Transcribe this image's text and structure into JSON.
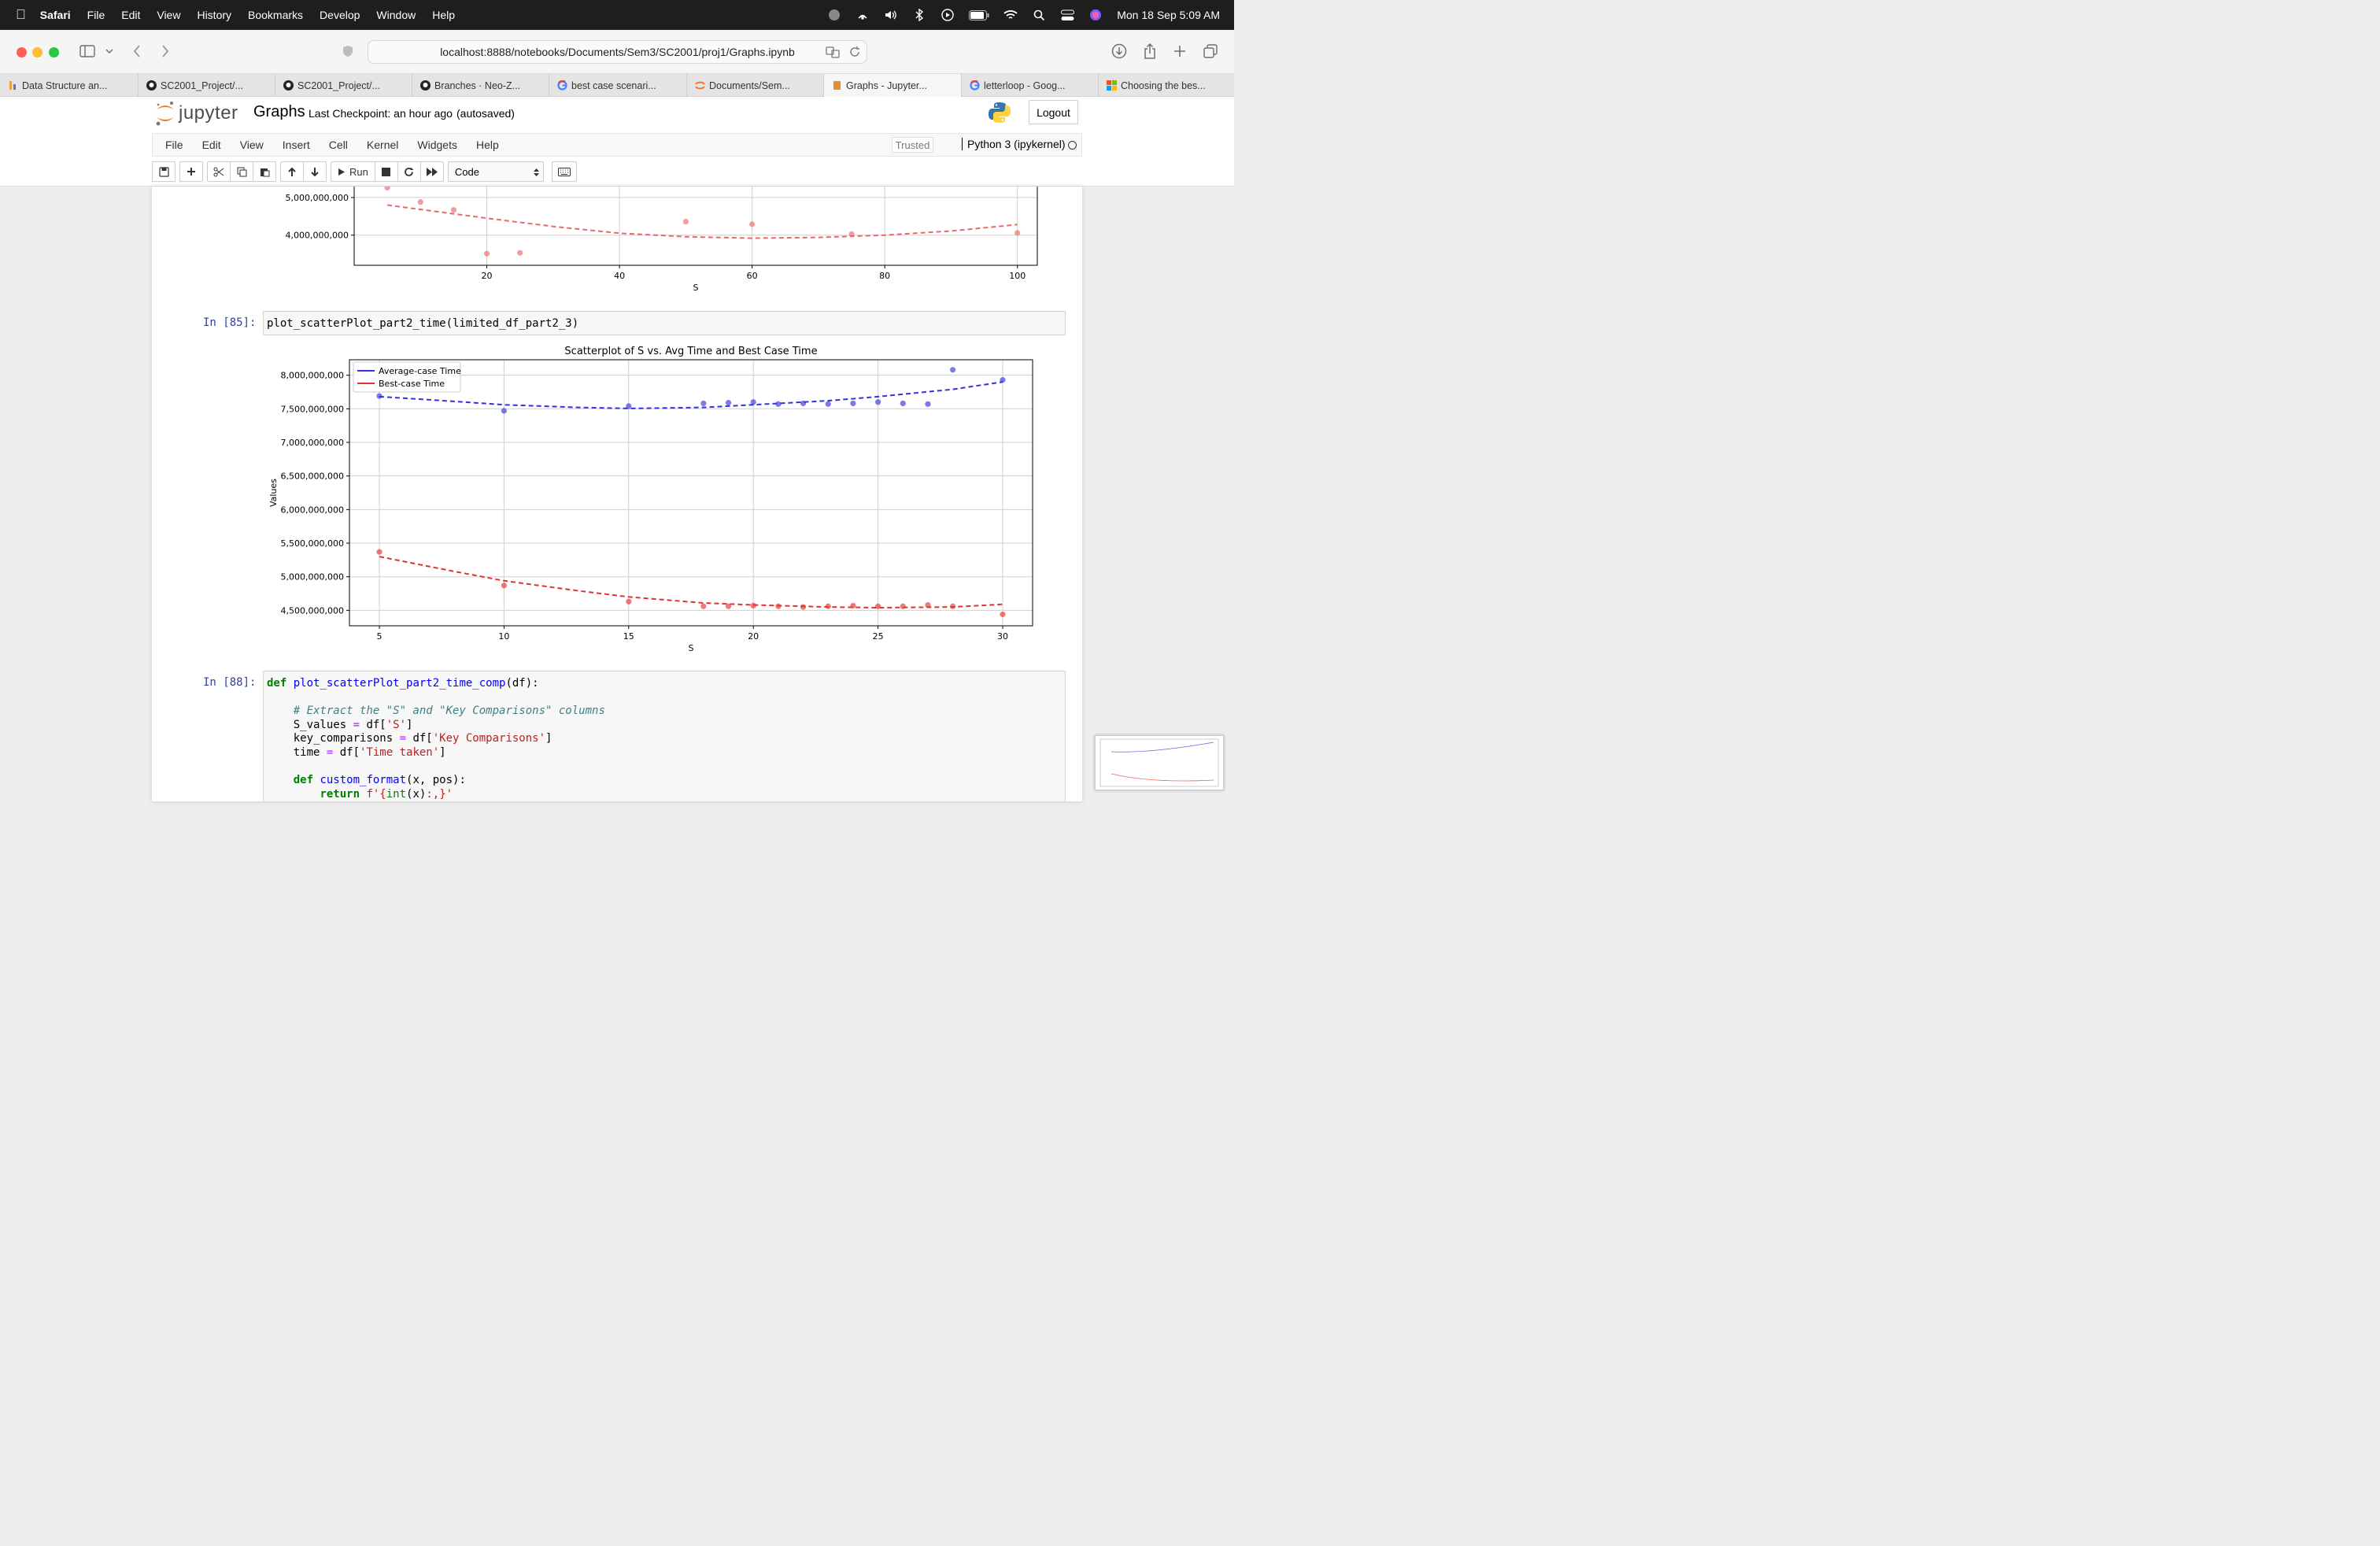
{
  "menubar": {
    "app": "Safari",
    "items": [
      "File",
      "Edit",
      "View",
      "History",
      "Bookmarks",
      "Develop",
      "Window",
      "Help"
    ],
    "clock": "Mon 18 Sep  5:09 AM"
  },
  "browser": {
    "url": "localhost:8888/notebooks/Documents/Sem3/SC2001/proj1/Graphs.ipynb",
    "tabs": [
      {
        "label": "Data Structure an...",
        "icon": "bar-icon"
      },
      {
        "label": "SC2001_Project/...",
        "icon": "github-icon"
      },
      {
        "label": "SC2001_Project/...",
        "icon": "github-icon"
      },
      {
        "label": "Branches · Neo-Z...",
        "icon": "github-icon"
      },
      {
        "label": "best case scenari...",
        "icon": "google-icon"
      },
      {
        "label": "Documents/Sem...",
        "icon": "jupyter-icon"
      },
      {
        "label": "Graphs - Jupyter...",
        "icon": "notebook-icon"
      },
      {
        "label": "letterloop - Goog...",
        "icon": "google-icon"
      },
      {
        "label": "Choosing the bes...",
        "icon": "microsoft-icon"
      }
    ]
  },
  "jupyter": {
    "logo_text": "jupyter",
    "notebook_name": "Graphs",
    "checkpoint": "Last Checkpoint: an hour ago",
    "autosave": "(autosaved)",
    "logout": "Logout",
    "menu": [
      "File",
      "Edit",
      "View",
      "Insert",
      "Cell",
      "Kernel",
      "Widgets",
      "Help"
    ],
    "trusted": "Trusted",
    "kernel": "Python 3 (ipykernel)",
    "run_label": "Run",
    "cell_type": "Code"
  },
  "cells": {
    "prompt_85": "In [85]:",
    "code_85": "plot_scatterPlot_part2_time(limited_df_part2_3)",
    "prompt_88": "In [88]:"
  },
  "chart_data": [
    {
      "type": "scatter",
      "title": "",
      "xlabel": "S",
      "ylabel": "",
      "xlim": [
        0,
        103
      ],
      "ylim": [
        3200000000,
        5500000000
      ],
      "xticks": [
        "20",
        "40",
        "60",
        "80",
        "100"
      ],
      "yticks": [
        "4,000,000,000",
        "5,000,000,000"
      ],
      "grid": true,
      "series": [
        {
          "color": "#e8696b",
          "points": [
            [
              5,
              5260000000
            ],
            [
              10,
              4880000000
            ],
            [
              15,
              4670000000
            ],
            [
              20,
              3510000000
            ],
            [
              25,
              3530000000
            ],
            [
              50,
              4360000000
            ],
            [
              60,
              4290000000
            ],
            [
              75,
              4030000000
            ],
            [
              100,
              4060000000
            ]
          ],
          "trend": [
            [
              5,
              4800000000
            ],
            [
              20,
              4450000000
            ],
            [
              30,
              4230000000
            ],
            [
              40,
              4050000000
            ],
            [
              50,
              3960000000
            ],
            [
              60,
              3920000000
            ],
            [
              70,
              3940000000
            ],
            [
              80,
              4000000000
            ],
            [
              90,
              4110000000
            ],
            [
              100,
              4280000000
            ]
          ]
        }
      ]
    },
    {
      "type": "scatter",
      "title": "Scatterplot of S vs. Avg Time and Best Case Time",
      "xlabel": "S",
      "ylabel": "Values",
      "xlim": [
        3.8,
        31.2
      ],
      "ylim": [
        4270000000,
        8230000000
      ],
      "xticks": [
        "5",
        "10",
        "15",
        "20",
        "25",
        "30"
      ],
      "yticks": [
        "4,500,000,000",
        "5,000,000,000",
        "5,500,000,000",
        "6,000,000,000",
        "6,500,000,000",
        "7,000,000,000",
        "7,500,000,000",
        "8,000,000,000"
      ],
      "grid": true,
      "legend_position": "top-left",
      "series": [
        {
          "name": "Average-case Time",
          "color": "#3333dd",
          "points": [
            [
              5,
              7690000000
            ],
            [
              10,
              7470000000
            ],
            [
              15,
              7540000000
            ],
            [
              18,
              7580000000
            ],
            [
              19,
              7590000000
            ],
            [
              20,
              7600000000
            ],
            [
              21,
              7570000000
            ],
            [
              22,
              7580000000
            ],
            [
              23,
              7570000000
            ],
            [
              24,
              7580000000
            ],
            [
              25,
              7600000000
            ],
            [
              26,
              7580000000
            ],
            [
              27,
              7570000000
            ],
            [
              28,
              8080000000
            ],
            [
              30,
              7930000000
            ]
          ],
          "trend": [
            [
              5,
              7680000000
            ],
            [
              8,
              7610000000
            ],
            [
              10,
              7560000000
            ],
            [
              13,
              7520000000
            ],
            [
              15,
              7505000000
            ],
            [
              18,
              7520000000
            ],
            [
              20,
              7560000000
            ],
            [
              23,
              7620000000
            ],
            [
              25,
              7680000000
            ],
            [
              28,
              7790000000
            ],
            [
              30,
              7900000000
            ]
          ]
        },
        {
          "name": "Best-case Time",
          "color": "#e03333",
          "points": [
            [
              5,
              5370000000
            ],
            [
              10,
              4870000000
            ],
            [
              15,
              4630000000
            ],
            [
              18,
              4560000000
            ],
            [
              19,
              4560000000
            ],
            [
              20,
              4570000000
            ],
            [
              21,
              4560000000
            ],
            [
              22,
              4550000000
            ],
            [
              23,
              4560000000
            ],
            [
              24,
              4570000000
            ],
            [
              25,
              4560000000
            ],
            [
              26,
              4560000000
            ],
            [
              27,
              4580000000
            ],
            [
              28,
              4560000000
            ],
            [
              30,
              4440000000
            ]
          ],
          "trend": [
            [
              5,
              5300000000
            ],
            [
              8,
              5080000000
            ],
            [
              10,
              4940000000
            ],
            [
              13,
              4790000000
            ],
            [
              15,
              4700000000
            ],
            [
              18,
              4610000000
            ],
            [
              20,
              4580000000
            ],
            [
              23,
              4550000000
            ],
            [
              25,
              4540000000
            ],
            [
              28,
              4550000000
            ],
            [
              30,
              4590000000
            ]
          ]
        }
      ]
    }
  ]
}
